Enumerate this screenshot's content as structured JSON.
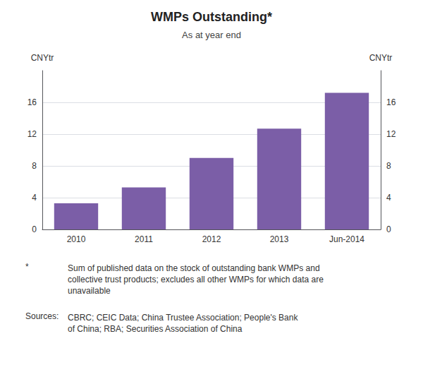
{
  "chart_data": {
    "type": "bar",
    "title": "WMPs Outstanding*",
    "subtitle": "As at year end",
    "categories": [
      "2010",
      "2011",
      "2012",
      "2013",
      "Jun-2014"
    ],
    "values": [
      3.3,
      5.3,
      9.0,
      12.7,
      17.2
    ],
    "color": "#7B5EA7",
    "ylabel": "CNYtr",
    "y2label": "CNYtr",
    "ylim": [
      0,
      20
    ],
    "yticks": [
      0,
      4,
      8,
      12,
      16
    ],
    "y2lim": [
      0,
      20
    ],
    "y2ticks": [
      0,
      4,
      8,
      12,
      16
    ],
    "grid": true,
    "annotations": [
      {
        "label": "*",
        "text": "Sum of published data on the stock of outstanding bank WMPs and\ncollective trust products; excludes all other WMPs for which data are\nunavailable"
      },
      {
        "label": "Sources:",
        "text": "CBRC; CEIC Data; China Trustee Association; People's Bank\nof China; RBA; Securities Association of China"
      }
    ]
  }
}
